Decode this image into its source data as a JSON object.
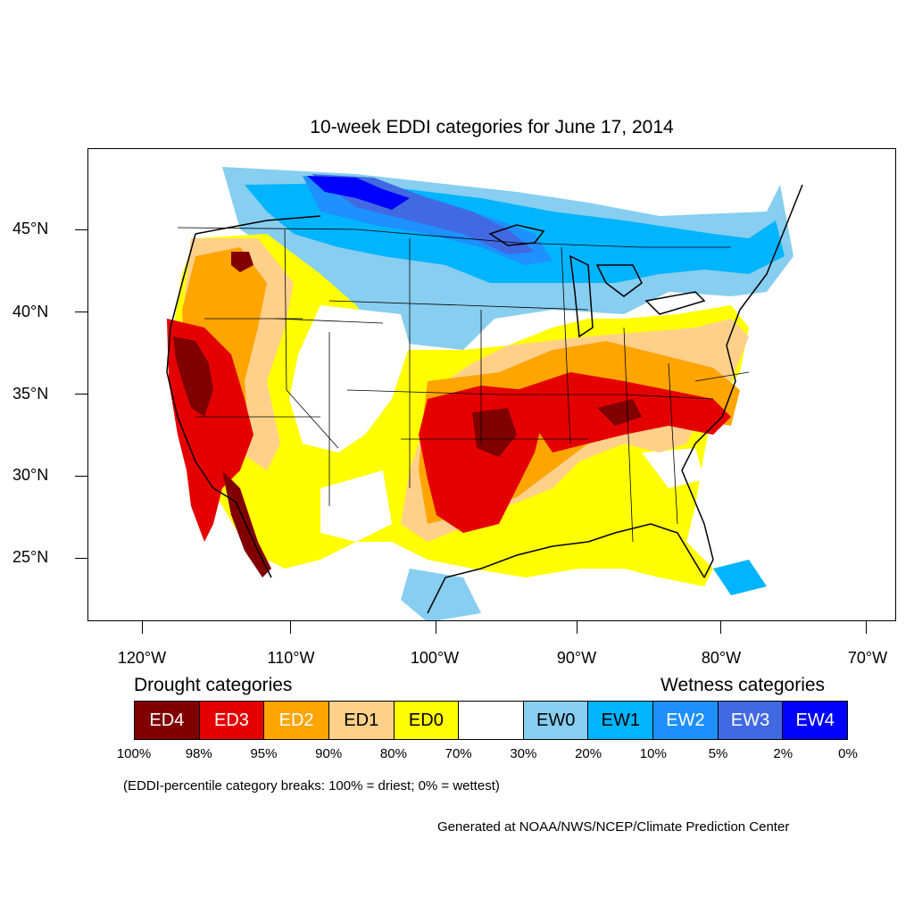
{
  "title": "10-week EDDI categories for June 17, 2014",
  "axes": {
    "lat_labels": [
      "45°N",
      "40°N",
      "35°N",
      "30°N",
      "25°N"
    ],
    "lon_labels": [
      "120°W",
      "110°W",
      "100°W",
      "90°W",
      "80°W",
      "70°W"
    ]
  },
  "legend": {
    "drought_heading": "Drought categories",
    "wetness_heading": "Wetness categories",
    "categories": [
      {
        "label": "ED4",
        "color": "#800000",
        "text_color": "#ffffff"
      },
      {
        "label": "ED3",
        "color": "#e50000",
        "text_color": "#ffffff"
      },
      {
        "label": "ED2",
        "color": "#ffa500",
        "text_color": "#ffffff"
      },
      {
        "label": "ED1",
        "color": "#ffd08a",
        "text_color": "#000000"
      },
      {
        "label": "ED0",
        "color": "#ffff00",
        "text_color": "#000000"
      },
      {
        "label": "",
        "color": "#ffffff",
        "text_color": "#000000"
      },
      {
        "label": "EW0",
        "color": "#87cef0",
        "text_color": "#000000"
      },
      {
        "label": "EW1",
        "color": "#00b4ff",
        "text_color": "#000000"
      },
      {
        "label": "EW2",
        "color": "#1e90ff",
        "text_color": "#ffffff"
      },
      {
        "label": "EW3",
        "color": "#4169e1",
        "text_color": "#ffffff"
      },
      {
        "label": "EW4",
        "color": "#0000ff",
        "text_color": "#ffffff"
      }
    ],
    "breaks": [
      "100%",
      "98%",
      "95%",
      "90%",
      "80%",
      "70%",
      "30%",
      "20%",
      "10%",
      "5%",
      "2%",
      "0%"
    ]
  },
  "note": "(EDDI-percentile category breaks: 100% = driest; 0% = wettest)",
  "credit": "Generated at NOAA/NWS/NCEP/Climate Prediction Center"
}
